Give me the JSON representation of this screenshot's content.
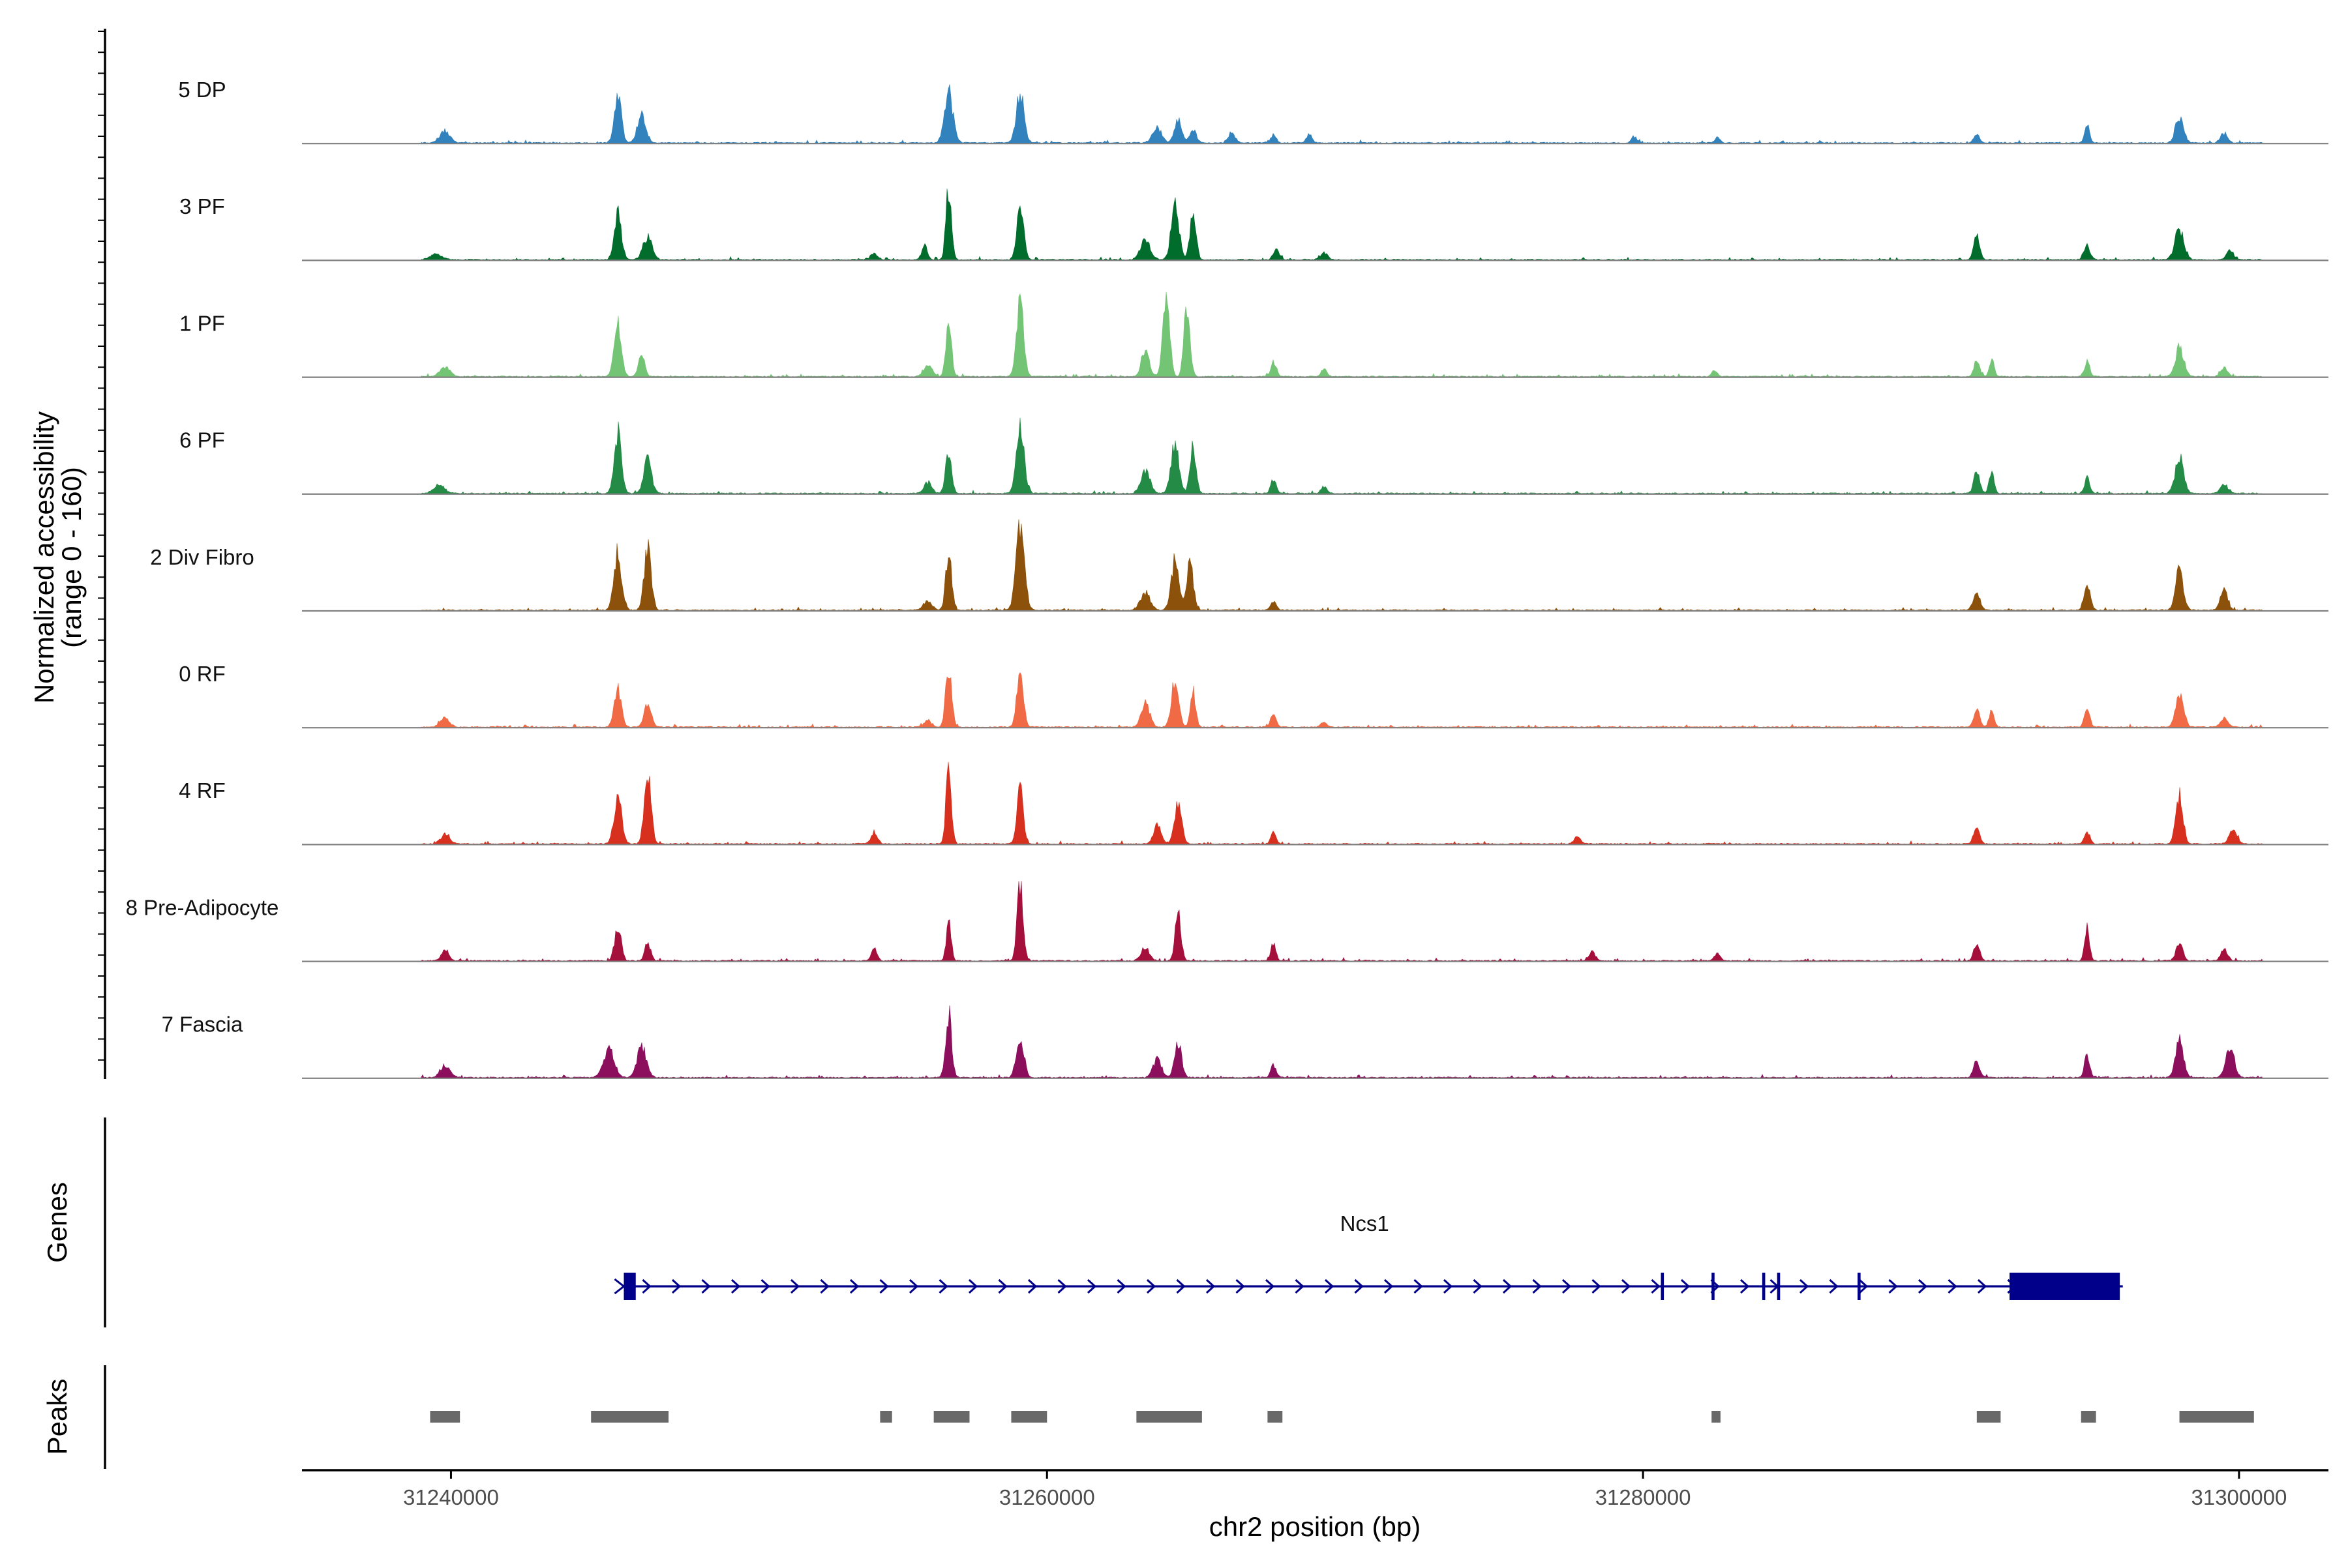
{
  "chart_data": {
    "type": "genome-coverage",
    "chromosome": "chr2",
    "region": [
      31235000,
      31303000
    ],
    "xlabel": "chr2 position (bp)",
    "xticks": [
      31240000,
      31260000,
      31280000,
      31300000
    ],
    "coverage_ylabel": [
      "Normalized accessibility",
      "(range 0 - 160)"
    ],
    "coverage_range": [
      0,
      160
    ],
    "genes_label": "Genes",
    "peaks_label": "Peaks",
    "tracks": [
      {
        "name": "5 DP",
        "color": "#3182bd",
        "start": 31239000,
        "end": 31300800,
        "peaks": [
          [
            31239800,
            20,
            160
          ],
          [
            31245600,
            75,
            120
          ],
          [
            31246400,
            48,
            140
          ],
          [
            31256700,
            85,
            140
          ],
          [
            31259100,
            82,
            130
          ],
          [
            31263700,
            25,
            150
          ],
          [
            31264400,
            38,
            120
          ],
          [
            31264900,
            22,
            110
          ],
          [
            31266200,
            17,
            110
          ],
          [
            31267600,
            13,
            90
          ],
          [
            31268800,
            14,
            90
          ],
          [
            31279700,
            10,
            90
          ],
          [
            31282500,
            9,
            80
          ],
          [
            31291200,
            14,
            100
          ],
          [
            31294900,
            30,
            80
          ],
          [
            31298000,
            40,
            140
          ],
          [
            31299500,
            16,
            120
          ]
        ]
      },
      {
        "name": "3 PF",
        "color": "#006d2c",
        "start": 31239000,
        "end": 31300800,
        "peaks": [
          [
            31239500,
            9,
            200
          ],
          [
            31245600,
            78,
            120
          ],
          [
            31246600,
            38,
            150
          ],
          [
            31254200,
            10,
            120
          ],
          [
            31255900,
            22,
            100
          ],
          [
            31256700,
            120,
            90
          ],
          [
            31259100,
            95,
            110
          ],
          [
            31263300,
            35,
            160
          ],
          [
            31264300,
            95,
            130
          ],
          [
            31264900,
            80,
            100
          ],
          [
            31267700,
            18,
            100
          ],
          [
            31269300,
            12,
            120
          ],
          [
            31291200,
            38,
            100
          ],
          [
            31294900,
            25,
            100
          ],
          [
            31298000,
            50,
            150
          ],
          [
            31299700,
            16,
            110
          ]
        ]
      },
      {
        "name": "1 PF",
        "color": "#74c476",
        "start": 31239000,
        "end": 31300800,
        "peaks": [
          [
            31239800,
            15,
            180
          ],
          [
            31245600,
            85,
            120
          ],
          [
            31246400,
            40,
            100
          ],
          [
            31256000,
            20,
            140
          ],
          [
            31256700,
            95,
            90
          ],
          [
            31259100,
            120,
            120
          ],
          [
            31263300,
            45,
            130
          ],
          [
            31264000,
            145,
            110
          ],
          [
            31264700,
            120,
            100
          ],
          [
            31267600,
            25,
            90
          ],
          [
            31269300,
            12,
            100
          ],
          [
            31282400,
            10,
            90
          ],
          [
            31291200,
            25,
            100
          ],
          [
            31291700,
            30,
            80
          ],
          [
            31294900,
            25,
            90
          ],
          [
            31298000,
            50,
            140
          ],
          [
            31299500,
            15,
            120
          ]
        ]
      },
      {
        "name": "6 PF",
        "color": "#238b45",
        "start": 31239000,
        "end": 31300800,
        "peaks": [
          [
            31239600,
            15,
            180
          ],
          [
            31245600,
            100,
            120
          ],
          [
            31246600,
            55,
            130
          ],
          [
            31256000,
            18,
            130
          ],
          [
            31256700,
            70,
            100
          ],
          [
            31259100,
            115,
            130
          ],
          [
            31263300,
            40,
            150
          ],
          [
            31264300,
            85,
            130
          ],
          [
            31264900,
            80,
            100
          ],
          [
            31267600,
            22,
            90
          ],
          [
            31269300,
            12,
            100
          ],
          [
            31291200,
            35,
            100
          ],
          [
            31291700,
            40,
            80
          ],
          [
            31294900,
            25,
            90
          ],
          [
            31298000,
            60,
            140
          ],
          [
            31299500,
            15,
            120
          ]
        ]
      },
      {
        "name": "2 Div Fibro",
        "color": "#8c510a",
        "start": 31239000,
        "end": 31300800,
        "peaks": [
          [
            31245600,
            95,
            130
          ],
          [
            31246600,
            100,
            120
          ],
          [
            31256000,
            15,
            150
          ],
          [
            31256700,
            90,
            100
          ],
          [
            31259100,
            140,
            140
          ],
          [
            31263300,
            30,
            160
          ],
          [
            31264300,
            85,
            130
          ],
          [
            31264800,
            80,
            110
          ],
          [
            31267600,
            13,
            100
          ],
          [
            31291200,
            28,
            110
          ],
          [
            31294900,
            45,
            100
          ],
          [
            31298000,
            65,
            130
          ],
          [
            31299500,
            35,
            120
          ]
        ]
      },
      {
        "name": "0 RF",
        "color": "#ef6a45",
        "start": 31239000,
        "end": 31300800,
        "peaks": [
          [
            31239800,
            15,
            150
          ],
          [
            31245600,
            60,
            120
          ],
          [
            31246600,
            40,
            120
          ],
          [
            31256000,
            10,
            130
          ],
          [
            31256700,
            95,
            100
          ],
          [
            31259100,
            90,
            110
          ],
          [
            31263300,
            40,
            140
          ],
          [
            31264300,
            80,
            120
          ],
          [
            31264900,
            60,
            90
          ],
          [
            31267600,
            25,
            90
          ],
          [
            31269300,
            10,
            90
          ],
          [
            31291200,
            35,
            90
          ],
          [
            31291700,
            30,
            80
          ],
          [
            31294900,
            30,
            90
          ],
          [
            31298000,
            55,
            130
          ],
          [
            31299500,
            15,
            120
          ]
        ]
      },
      {
        "name": "4 RF",
        "color": "#d7301f",
        "start": 31239000,
        "end": 31300800,
        "peaks": [
          [
            31239800,
            15,
            150
          ],
          [
            31245600,
            75,
            130
          ],
          [
            31246600,
            128,
            110
          ],
          [
            31254200,
            18,
            110
          ],
          [
            31256700,
            128,
            90
          ],
          [
            31259100,
            88,
            110
          ],
          [
            31263700,
            30,
            130
          ],
          [
            31264400,
            70,
            120
          ],
          [
            31267600,
            22,
            80
          ],
          [
            31277800,
            12,
            110
          ],
          [
            31291200,
            25,
            100
          ],
          [
            31294900,
            22,
            90
          ],
          [
            31298000,
            80,
            120
          ],
          [
            31299800,
            25,
            130
          ]
        ]
      },
      {
        "name": "8 Pre-Adipocyte",
        "color": "#a50f3c",
        "start": 31239000,
        "end": 31300800,
        "peaks": [
          [
            31239800,
            20,
            110
          ],
          [
            31245600,
            55,
            110
          ],
          [
            31246600,
            28,
            100
          ],
          [
            31254200,
            20,
            90
          ],
          [
            31256700,
            68,
            80
          ],
          [
            31259100,
            130,
            100
          ],
          [
            31263300,
            20,
            140
          ],
          [
            31264400,
            78,
            100
          ],
          [
            31267600,
            30,
            80
          ],
          [
            31278300,
            15,
            100
          ],
          [
            31282500,
            13,
            90
          ],
          [
            31291200,
            28,
            100
          ],
          [
            31294900,
            55,
            80
          ],
          [
            31298000,
            30,
            110
          ],
          [
            31299500,
            20,
            110
          ]
        ]
      },
      {
        "name": "7 Fascia",
        "color": "#8c0f5e",
        "start": 31239000,
        "end": 31300800,
        "peaks": [
          [
            31239800,
            20,
            160
          ],
          [
            31245300,
            45,
            180
          ],
          [
            31246400,
            50,
            160
          ],
          [
            31256700,
            105,
            100
          ],
          [
            31259100,
            65,
            130
          ],
          [
            31263700,
            30,
            140
          ],
          [
            31264400,
            55,
            120
          ],
          [
            31267600,
            20,
            90
          ],
          [
            31291200,
            28,
            100
          ],
          [
            31294900,
            35,
            90
          ],
          [
            31298000,
            65,
            130
          ],
          [
            31299700,
            50,
            140
          ]
        ]
      }
    ],
    "genes": [
      {
        "name": "Ncs1",
        "strand": "+",
        "start": 31245800,
        "end": 31296100,
        "exons": [
          [
            31245800,
            31246200,
            "utr"
          ],
          [
            31280600,
            31280700,
            "cds"
          ],
          [
            31282300,
            31282400,
            "cds"
          ],
          [
            31284000,
            31284100,
            "cds"
          ],
          [
            31284500,
            31284600,
            "cds"
          ],
          [
            31287200,
            31287300,
            "cds"
          ],
          [
            31292300,
            31296000,
            "cds"
          ]
        ]
      }
    ],
    "peaks": [
      [
        31239300,
        31240300
      ],
      [
        31244700,
        31247300
      ],
      [
        31254400,
        31254800
      ],
      [
        31256200,
        31257400
      ],
      [
        31258800,
        31260000
      ],
      [
        31263000,
        31265200
      ],
      [
        31267400,
        31267900
      ],
      [
        31282300,
        31282600
      ],
      [
        31291200,
        31292000
      ],
      [
        31294700,
        31295200
      ],
      [
        31298000,
        31300500
      ]
    ]
  }
}
